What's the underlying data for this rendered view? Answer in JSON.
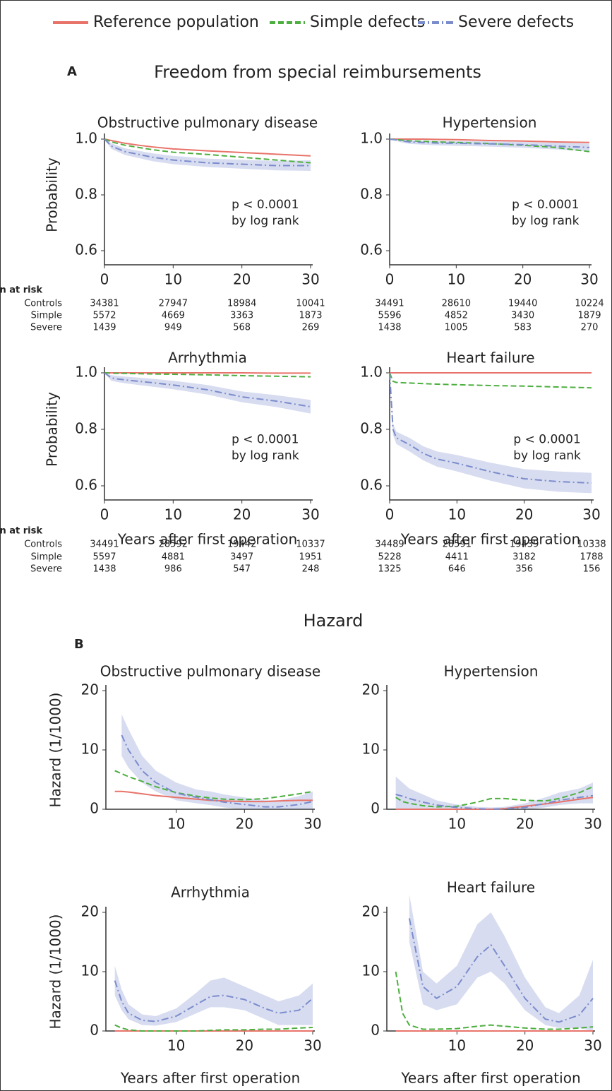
{
  "panels": [
    {
      "label": "A",
      "title": "Freedom from special reimbursements"
    },
    {
      "label": "B",
      "title": "Hazard"
    }
  ],
  "risk_table_title": "n at risk",
  "risk_row_labels": [
    "Controls",
    "Simple",
    "Severe"
  ],
  "chart_data": [
    {
      "type": "line",
      "title": "Obstructive pulmonary disease",
      "ylabel": "Probability",
      "x": [
        0,
        1,
        2,
        3,
        5,
        7,
        10,
        15,
        20,
        25,
        30
      ],
      "xlim": [
        0,
        30
      ],
      "xticks": [
        0,
        10,
        20,
        30
      ],
      "ylim": [
        0.6,
        1
      ],
      "yticks": [
        0.6,
        0.8,
        {
          "value": 1,
          "label": "1.0"
        }
      ],
      "annotation": [
        "p < 0.0001",
        "by log rank"
      ],
      "series": [
        {
          "name": "Reference population",
          "color": "#e8736a",
          "dash": "solid",
          "values": [
            1,
            0.995,
            0.99,
            0.985,
            0.978,
            0.972,
            0.965,
            0.958,
            0.952,
            0.946,
            0.94
          ]
        },
        {
          "name": "Simple defects",
          "color": "#4caf3f",
          "dash": "dashed",
          "values": [
            1,
            0.99,
            0.984,
            0.978,
            0.97,
            0.962,
            0.953,
            0.945,
            0.935,
            0.925,
            0.915
          ]
        },
        {
          "name": "Severe defects",
          "color": "#7b8ccc",
          "dash": "dashdot",
          "values": [
            1,
            0.975,
            0.965,
            0.955,
            0.945,
            0.935,
            0.925,
            0.915,
            0.91,
            0.905,
            0.905
          ],
          "lower": [
            1,
            0.965,
            0.954,
            0.943,
            0.932,
            0.921,
            0.91,
            0.9,
            0.894,
            0.888,
            0.886
          ],
          "upper": [
            1,
            0.985,
            0.976,
            0.967,
            0.958,
            0.949,
            0.94,
            0.93,
            0.926,
            0.922,
            0.924
          ]
        }
      ],
      "n_at_risk": [
        [
          34381,
          27947,
          18984,
          10041
        ],
        [
          5572,
          4669,
          3363,
          1873
        ],
        [
          1439,
          949,
          568,
          269
        ]
      ]
    },
    {
      "type": "line",
      "title": "Hypertension",
      "x": [
        0,
        1,
        2,
        3,
        5,
        7,
        10,
        15,
        20,
        25,
        30
      ],
      "xlim": [
        0,
        30
      ],
      "xticks": [
        0,
        10,
        20,
        30
      ],
      "ylim": [
        0.6,
        1
      ],
      "yticks": [
        0.6,
        0.8,
        {
          "value": 1,
          "label": "1.0"
        }
      ],
      "annotation": [
        "p < 0.0001",
        "by log rank"
      ],
      "series": [
        {
          "name": "Reference population",
          "color": "#e8736a",
          "dash": "solid",
          "values": [
            1,
            1,
            1,
            1,
            1,
            0.999,
            0.998,
            0.995,
            0.993,
            0.99,
            0.988
          ]
        },
        {
          "name": "Simple defects",
          "color": "#4caf3f",
          "dash": "dashed",
          "values": [
            1,
            0.998,
            0.996,
            0.994,
            0.992,
            0.99,
            0.988,
            0.984,
            0.978,
            0.97,
            0.955
          ]
        },
        {
          "name": "Severe defects",
          "color": "#7b8ccc",
          "dash": "dashdot",
          "values": [
            1,
            0.997,
            0.993,
            0.99,
            0.988,
            0.986,
            0.985,
            0.983,
            0.98,
            0.975,
            0.97
          ],
          "lower": [
            1,
            0.993,
            0.987,
            0.983,
            0.98,
            0.978,
            0.976,
            0.973,
            0.969,
            0.963,
            0.956
          ],
          "upper": [
            1,
            1,
            0.998,
            0.996,
            0.995,
            0.994,
            0.993,
            0.992,
            0.99,
            0.987,
            0.984
          ]
        }
      ],
      "n_at_risk": [
        [
          34491,
          28610,
          19440,
          10224
        ],
        [
          5596,
          4852,
          3430,
          1879
        ],
        [
          1438,
          1005,
          583,
          270
        ]
      ]
    },
    {
      "type": "line",
      "title": "Arrhythmia",
      "ylabel": "Probability",
      "xlabel": "Years after first operation",
      "x": [
        0,
        1,
        2,
        3,
        5,
        7,
        10,
        15,
        20,
        25,
        30
      ],
      "xlim": [
        0,
        30
      ],
      "xticks": [
        0,
        10,
        20,
        30
      ],
      "ylim": [
        0.6,
        1
      ],
      "yticks": [
        0.6,
        0.8,
        {
          "value": 1,
          "label": "1.0"
        }
      ],
      "annotation": [
        "p < 0.0001",
        "by log rank"
      ],
      "series": [
        {
          "name": "Reference population",
          "color": "#e8736a",
          "dash": "solid",
          "values": [
            1,
            1,
            1,
            1,
            1,
            1,
            1,
            1,
            1,
            0.999,
            0.999
          ]
        },
        {
          "name": "Simple defects",
          "color": "#4caf3f",
          "dash": "dashed",
          "values": [
            1,
            0.999,
            0.998,
            0.998,
            0.997,
            0.996,
            0.995,
            0.993,
            0.99,
            0.988,
            0.986
          ]
        },
        {
          "name": "Severe defects",
          "color": "#7b8ccc",
          "dash": "dashdot",
          "values": [
            1,
            0.982,
            0.978,
            0.975,
            0.97,
            0.965,
            0.957,
            0.94,
            0.915,
            0.9,
            0.88
          ],
          "lower": [
            1,
            0.972,
            0.967,
            0.963,
            0.957,
            0.951,
            0.942,
            0.923,
            0.896,
            0.879,
            0.856
          ],
          "upper": [
            1,
            0.992,
            0.989,
            0.987,
            0.983,
            0.979,
            0.972,
            0.957,
            0.934,
            0.921,
            0.904
          ]
        }
      ],
      "n_at_risk": [
        [
          34491,
          28592,
          19442,
          10337
        ],
        [
          5597,
          4881,
          3497,
          1951
        ],
        [
          1438,
          986,
          547,
          248
        ]
      ]
    },
    {
      "type": "line",
      "title": "Heart failure",
      "xlabel": "Years after first operation",
      "x": [
        0,
        0.5,
        1,
        3,
        5,
        7,
        10,
        15,
        20,
        25,
        30
      ],
      "xlim": [
        0,
        30
      ],
      "xticks": [
        0,
        10,
        20,
        30
      ],
      "ylim": [
        0.6,
        1
      ],
      "yticks": [
        0.6,
        0.8,
        {
          "value": 1,
          "label": "1.0"
        }
      ],
      "annotation": [
        "p < 0.0001",
        "by log rank"
      ],
      "series": [
        {
          "name": "Reference population",
          "color": "#e8736a",
          "dash": "solid",
          "values": [
            1,
            1,
            1,
            1,
            1,
            1,
            1,
            1,
            1,
            1,
            1
          ]
        },
        {
          "name": "Simple defects",
          "color": "#4caf3f",
          "dash": "dashed",
          "values": [
            1,
            0.97,
            0.966,
            0.964,
            0.962,
            0.96,
            0.958,
            0.955,
            0.953,
            0.95,
            0.947
          ]
        },
        {
          "name": "Severe defects",
          "color": "#7b8ccc",
          "dash": "dashdot",
          "values": [
            1,
            0.8,
            0.77,
            0.745,
            0.715,
            0.695,
            0.68,
            0.65,
            0.625,
            0.615,
            0.61
          ],
          "lower": [
            1,
            0.78,
            0.748,
            0.721,
            0.69,
            0.668,
            0.651,
            0.618,
            0.591,
            0.579,
            0.574
          ],
          "upper": [
            1,
            0.82,
            0.792,
            0.769,
            0.74,
            0.722,
            0.709,
            0.682,
            0.659,
            0.651,
            0.646
          ]
        }
      ],
      "n_at_risk": [
        [
          34489,
          28591,
          19439,
          10338
        ],
        [
          5228,
          4411,
          3182,
          1788
        ],
        [
          1325,
          646,
          356,
          156
        ]
      ]
    },
    {
      "type": "line",
      "title": "Obstructive pulmonary disease",
      "ylabel": "Hazard (1/1000)",
      "x": [
        1,
        2,
        3,
        5,
        7,
        10,
        13,
        15,
        17,
        20,
        23,
        25,
        28,
        30
      ],
      "xlim": [
        0,
        30
      ],
      "xticks": [
        10,
        20,
        30
      ],
      "ylim": [
        0,
        20
      ],
      "yticks": [
        0,
        10,
        20
      ],
      "series": [
        {
          "name": "Reference population",
          "color": "#e8736a",
          "dash": "solid",
          "values": [
            3,
            3,
            2.9,
            2.6,
            2.3,
            2,
            1.7,
            1.5,
            1.4,
            1.3,
            1.3,
            1.4,
            1.5,
            1.5
          ]
        },
        {
          "name": "Simple defects",
          "color": "#4caf3f",
          "dash": "dashed",
          "values": [
            6.5,
            6,
            5.5,
            4.7,
            3.8,
            2.8,
            2.2,
            1.9,
            1.7,
            1.6,
            1.8,
            2.1,
            2.6,
            3
          ]
        },
        {
          "name": "Severe defects",
          "color": "#7b8ccc",
          "dash": "dashdot",
          "values": [
            null,
            12.5,
            10,
            6.5,
            4.5,
            2.7,
            2,
            1.6,
            1.2,
            0.8,
            0.4,
            0.4,
            0.8,
            1.3
          ],
          "lower": [
            null,
            9,
            7,
            4.5,
            3,
            1.5,
            1,
            0.7,
            0.3,
            0,
            0,
            0,
            0,
            0
          ],
          "upper": [
            null,
            16,
            13.5,
            9,
            6.5,
            4.5,
            3.3,
            3,
            2.5,
            2,
            1.5,
            1.5,
            2.2,
            3
          ]
        }
      ]
    },
    {
      "type": "line",
      "title": "Hypertension",
      "x": [
        1,
        2,
        3,
        5,
        7,
        10,
        13,
        15,
        17,
        20,
        23,
        25,
        28,
        30
      ],
      "xlim": [
        0,
        30
      ],
      "xticks": [
        10,
        20,
        30
      ],
      "ylim": [
        0,
        20
      ],
      "yticks": [
        0,
        10,
        20
      ],
      "series": [
        {
          "name": "Reference population",
          "color": "#e8736a",
          "dash": "solid",
          "values": [
            0,
            0,
            0,
            0,
            0,
            0,
            0,
            0,
            0.1,
            0.5,
            0.9,
            1.2,
            1.7,
            2
          ]
        },
        {
          "name": "Simple defects",
          "color": "#4caf3f",
          "dash": "dashed",
          "values": [
            2,
            1.3,
            1,
            0.6,
            0.4,
            0.5,
            1.2,
            1.8,
            1.8,
            1.5,
            1.4,
            1.8,
            2.8,
            3.8
          ]
        },
        {
          "name": "Severe defects",
          "color": "#7b8ccc",
          "dash": "dashdot",
          "values": [
            2.5,
            2.2,
            1.8,
            1.2,
            0.7,
            0.3,
            0.1,
            0,
            0.1,
            0.3,
            1,
            1.5,
            2,
            2.3
          ],
          "lower": [
            0,
            0,
            0,
            0,
            0,
            0,
            0,
            0,
            0,
            0,
            0.3,
            0.7,
            1,
            1
          ],
          "upper": [
            5.5,
            4.5,
            3.5,
            2.5,
            1.5,
            0.8,
            0.4,
            0.3,
            0.4,
            1,
            2,
            2.8,
            3.5,
            4.5
          ]
        }
      ]
    },
    {
      "type": "line",
      "title": "Arrhythmia",
      "ylabel": "Hazard (1/1000)",
      "xlabel": "Years after first operation",
      "x": [
        1,
        2,
        3,
        5,
        7,
        10,
        13,
        15,
        17,
        20,
        23,
        25,
        28,
        30
      ],
      "xlim": [
        0,
        30
      ],
      "xticks": [
        10,
        20,
        30
      ],
      "ylim": [
        0,
        20
      ],
      "yticks": [
        0,
        10,
        20
      ],
      "series": [
        {
          "name": "Reference population",
          "color": "#e8736a",
          "dash": "solid",
          "values": [
            0,
            0,
            0,
            0,
            0,
            0,
            0,
            0,
            0,
            0,
            0,
            0,
            0,
            0
          ]
        },
        {
          "name": "Simple defects",
          "color": "#4caf3f",
          "dash": "dashed",
          "values": [
            1,
            0.5,
            0.2,
            0,
            0,
            0,
            0,
            0.1,
            0.2,
            0.2,
            0.3,
            0.3,
            0.5,
            0.6
          ]
        },
        {
          "name": "Severe defects",
          "color": "#7b8ccc",
          "dash": "dashdot",
          "values": [
            8.5,
            5,
            3,
            1.8,
            1.6,
            2.5,
            4.5,
            5.8,
            6,
            5.3,
            3.8,
            3,
            3.5,
            5.5
          ],
          "lower": [
            6,
            3.5,
            2,
            1,
            0.9,
            1.5,
            3,
            4,
            4,
            3.5,
            2,
            1,
            1,
            1
          ],
          "upper": [
            11,
            7,
            4.5,
            2.8,
            2.5,
            3.8,
            6.5,
            8.5,
            9,
            7.5,
            6,
            5,
            6,
            8
          ]
        }
      ]
    },
    {
      "type": "line",
      "title": "Heart failure",
      "xlabel": "Years after first operation",
      "x": [
        1,
        2,
        3,
        5,
        7,
        10,
        13,
        15,
        17,
        20,
        23,
        25,
        28,
        30
      ],
      "xlim": [
        0,
        30
      ],
      "xticks": [
        10,
        20,
        30
      ],
      "ylim": [
        0,
        20
      ],
      "yticks": [
        0,
        10,
        20
      ],
      "series": [
        {
          "name": "Reference population",
          "color": "#e8736a",
          "dash": "solid",
          "values": [
            0,
            0,
            0,
            0,
            0,
            0,
            0,
            0,
            0,
            0,
            0,
            0,
            0,
            0
          ]
        },
        {
          "name": "Simple defects",
          "color": "#4caf3f",
          "dash": "dashed",
          "values": [
            10,
            3,
            1,
            0.3,
            0.3,
            0.4,
            0.8,
            1,
            0.8,
            0.5,
            0.3,
            0.3,
            0.5,
            0.7
          ]
        },
        {
          "name": "Severe defects",
          "color": "#7b8ccc",
          "dash": "dashdot",
          "values": [
            null,
            null,
            19,
            7.5,
            5.5,
            7.5,
            12.5,
            14.5,
            11,
            5.5,
            2,
            1.5,
            2.7,
            5.5
          ],
          "lower": [
            null,
            null,
            15,
            4.5,
            3.5,
            4.5,
            9,
            10,
            8,
            3.5,
            1,
            0.5,
            0.5,
            0
          ],
          "upper": [
            null,
            null,
            23,
            10,
            8,
            11,
            18,
            20,
            16,
            9,
            4,
            3,
            6,
            12
          ]
        }
      ]
    }
  ]
}
